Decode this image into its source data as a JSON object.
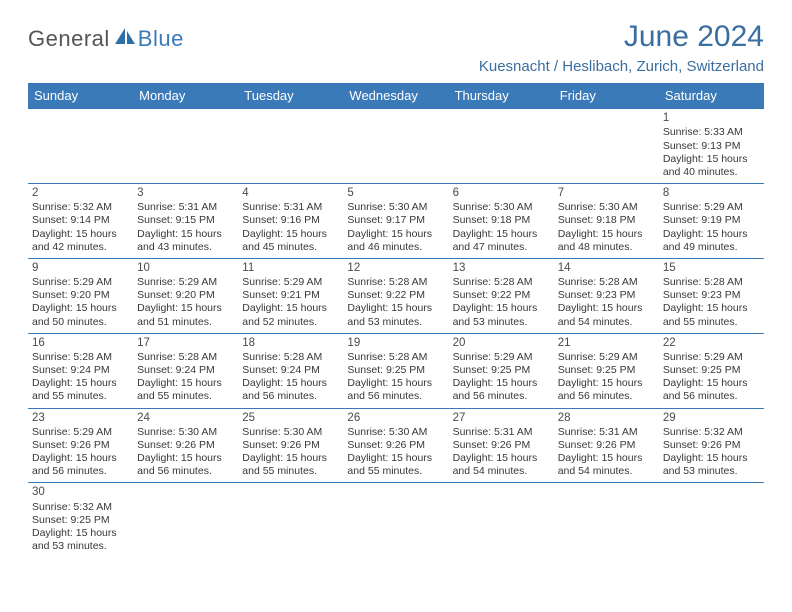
{
  "logo": {
    "part1": "General",
    "part2": "Blue"
  },
  "title": "June 2024",
  "location": "Kuesnacht / Heslibach, Zurich, Switzerland",
  "colors": {
    "header_bg": "#3b7ab8",
    "header_text": "#ffffff",
    "title_color": "#3b6ea0",
    "border_color": "#3b7ab8",
    "body_text": "#383838"
  },
  "weekdays": [
    "Sunday",
    "Monday",
    "Tuesday",
    "Wednesday",
    "Thursday",
    "Friday",
    "Saturday"
  ],
  "first_weekday_index": 6,
  "days": [
    {
      "n": 1,
      "sunrise": "5:33 AM",
      "sunset": "9:13 PM",
      "dl_h": 15,
      "dl_m": 40
    },
    {
      "n": 2,
      "sunrise": "5:32 AM",
      "sunset": "9:14 PM",
      "dl_h": 15,
      "dl_m": 42
    },
    {
      "n": 3,
      "sunrise": "5:31 AM",
      "sunset": "9:15 PM",
      "dl_h": 15,
      "dl_m": 43
    },
    {
      "n": 4,
      "sunrise": "5:31 AM",
      "sunset": "9:16 PM",
      "dl_h": 15,
      "dl_m": 45
    },
    {
      "n": 5,
      "sunrise": "5:30 AM",
      "sunset": "9:17 PM",
      "dl_h": 15,
      "dl_m": 46
    },
    {
      "n": 6,
      "sunrise": "5:30 AM",
      "sunset": "9:18 PM",
      "dl_h": 15,
      "dl_m": 47
    },
    {
      "n": 7,
      "sunrise": "5:30 AM",
      "sunset": "9:18 PM",
      "dl_h": 15,
      "dl_m": 48
    },
    {
      "n": 8,
      "sunrise": "5:29 AM",
      "sunset": "9:19 PM",
      "dl_h": 15,
      "dl_m": 49
    },
    {
      "n": 9,
      "sunrise": "5:29 AM",
      "sunset": "9:20 PM",
      "dl_h": 15,
      "dl_m": 50
    },
    {
      "n": 10,
      "sunrise": "5:29 AM",
      "sunset": "9:20 PM",
      "dl_h": 15,
      "dl_m": 51
    },
    {
      "n": 11,
      "sunrise": "5:29 AM",
      "sunset": "9:21 PM",
      "dl_h": 15,
      "dl_m": 52
    },
    {
      "n": 12,
      "sunrise": "5:28 AM",
      "sunset": "9:22 PM",
      "dl_h": 15,
      "dl_m": 53
    },
    {
      "n": 13,
      "sunrise": "5:28 AM",
      "sunset": "9:22 PM",
      "dl_h": 15,
      "dl_m": 53
    },
    {
      "n": 14,
      "sunrise": "5:28 AM",
      "sunset": "9:23 PM",
      "dl_h": 15,
      "dl_m": 54
    },
    {
      "n": 15,
      "sunrise": "5:28 AM",
      "sunset": "9:23 PM",
      "dl_h": 15,
      "dl_m": 55
    },
    {
      "n": 16,
      "sunrise": "5:28 AM",
      "sunset": "9:24 PM",
      "dl_h": 15,
      "dl_m": 55
    },
    {
      "n": 17,
      "sunrise": "5:28 AM",
      "sunset": "9:24 PM",
      "dl_h": 15,
      "dl_m": 55
    },
    {
      "n": 18,
      "sunrise": "5:28 AM",
      "sunset": "9:24 PM",
      "dl_h": 15,
      "dl_m": 56
    },
    {
      "n": 19,
      "sunrise": "5:28 AM",
      "sunset": "9:25 PM",
      "dl_h": 15,
      "dl_m": 56
    },
    {
      "n": 20,
      "sunrise": "5:29 AM",
      "sunset": "9:25 PM",
      "dl_h": 15,
      "dl_m": 56
    },
    {
      "n": 21,
      "sunrise": "5:29 AM",
      "sunset": "9:25 PM",
      "dl_h": 15,
      "dl_m": 56
    },
    {
      "n": 22,
      "sunrise": "5:29 AM",
      "sunset": "9:25 PM",
      "dl_h": 15,
      "dl_m": 56
    },
    {
      "n": 23,
      "sunrise": "5:29 AM",
      "sunset": "9:26 PM",
      "dl_h": 15,
      "dl_m": 56
    },
    {
      "n": 24,
      "sunrise": "5:30 AM",
      "sunset": "9:26 PM",
      "dl_h": 15,
      "dl_m": 56
    },
    {
      "n": 25,
      "sunrise": "5:30 AM",
      "sunset": "9:26 PM",
      "dl_h": 15,
      "dl_m": 55
    },
    {
      "n": 26,
      "sunrise": "5:30 AM",
      "sunset": "9:26 PM",
      "dl_h": 15,
      "dl_m": 55
    },
    {
      "n": 27,
      "sunrise": "5:31 AM",
      "sunset": "9:26 PM",
      "dl_h": 15,
      "dl_m": 54
    },
    {
      "n": 28,
      "sunrise": "5:31 AM",
      "sunset": "9:26 PM",
      "dl_h": 15,
      "dl_m": 54
    },
    {
      "n": 29,
      "sunrise": "5:32 AM",
      "sunset": "9:26 PM",
      "dl_h": 15,
      "dl_m": 53
    },
    {
      "n": 30,
      "sunrise": "5:32 AM",
      "sunset": "9:25 PM",
      "dl_h": 15,
      "dl_m": 53
    }
  ],
  "labels": {
    "sunrise": "Sunrise:",
    "sunset": "Sunset:",
    "daylight_prefix": "Daylight:",
    "hours_word": "hours",
    "and_word": "and",
    "minutes_word": "minutes."
  }
}
